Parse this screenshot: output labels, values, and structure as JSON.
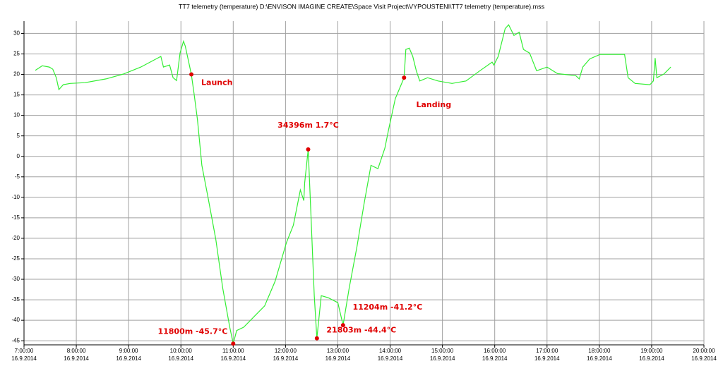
{
  "chart_data": {
    "type": "line",
    "title": "TT7 telemetry (temperature)    D:\\ENVISON IMAGINE CREATE\\Space Visit Project\\VYPOUSTENI\\TT7 telemetry (temperature).mss",
    "color": "#33ee33",
    "grid": true,
    "x": [
      "2014-09-16T07:13",
      "2014-09-16T07:21",
      "2014-09-16T07:29",
      "2014-09-16T07:33",
      "2014-09-16T07:37",
      "2014-09-16T07:40",
      "2014-09-16T07:45",
      "2014-09-16T07:53",
      "2014-09-16T08:10",
      "2014-09-16T08:34",
      "2014-09-16T08:54",
      "2014-09-16T09:14",
      "2014-09-16T09:37",
      "2014-09-16T09:40",
      "2014-09-16T09:47",
      "2014-09-16T09:51",
      "2014-09-16T09:55",
      "2014-09-16T09:59",
      "2014-09-16T10:03",
      "2014-09-16T10:05",
      "2014-09-16T10:09",
      "2014-09-16T10:12",
      "2014-09-16T10:15",
      "2014-09-16T10:19",
      "2014-09-16T10:24",
      "2014-09-16T10:31",
      "2014-09-16T10:40",
      "2014-09-16T10:48",
      "2014-09-16T10:56",
      "2014-09-16T11:00",
      "2014-09-16T11:04",
      "2014-09-16T11:12",
      "2014-09-16T11:24",
      "2014-09-16T11:36",
      "2014-09-16T11:48",
      "2014-09-16T12:01",
      "2014-09-16T12:09",
      "2014-09-16T12:17",
      "2014-09-16T12:21",
      "2014-09-16T12:22",
      "2014-09-16T12:26",
      "2014-09-16T12:29",
      "2014-09-16T12:33",
      "2014-09-16T12:36",
      "2014-09-16T12:41",
      "2014-09-16T12:49",
      "2014-09-16T13:00",
      "2014-09-16T13:06",
      "2014-09-16T13:13",
      "2014-09-16T13:22",
      "2014-09-16T13:30",
      "2014-09-16T13:38",
      "2014-09-16T13:46",
      "2014-09-16T13:54",
      "2014-09-16T13:58",
      "2014-09-16T14:06",
      "2014-09-16T14:16",
      "2014-09-16T14:18",
      "2014-09-16T14:22",
      "2014-09-16T14:26",
      "2014-09-16T14:30",
      "2014-09-16T14:34",
      "2014-09-16T14:43",
      "2014-09-16T14:55",
      "2014-09-16T15:11",
      "2014-09-16T15:27",
      "2014-09-16T15:43",
      "2014-09-16T15:57",
      "2014-09-16T15:59",
      "2014-09-16T16:04",
      "2014-09-16T16:12",
      "2014-09-16T16:16",
      "2014-09-16T16:22",
      "2014-09-16T16:28",
      "2014-09-16T16:33",
      "2014-09-16T16:40",
      "2014-09-16T16:48",
      "2014-09-16T17:00",
      "2014-09-16T17:12",
      "2014-09-16T17:33",
      "2014-09-16T17:37",
      "2014-09-16T17:41",
      "2014-09-16T17:49",
      "2014-09-16T18:01",
      "2014-09-16T18:29",
      "2014-09-16T18:33",
      "2014-09-16T18:41",
      "2014-09-16T18:58",
      "2014-09-16T19:02",
      "2014-09-16T19:04",
      "2014-09-16T19:06",
      "2014-09-16T19:14",
      "2014-09-16T19:22"
    ],
    "values": [
      21.0,
      22.1,
      21.8,
      21.3,
      19.2,
      16.3,
      17.5,
      17.8,
      18.0,
      18.9,
      20.1,
      21.8,
      24.4,
      21.8,
      22.3,
      19.2,
      18.5,
      25.2,
      28.1,
      26.9,
      23.0,
      20.0,
      15.4,
      8.9,
      -2.2,
      -9.9,
      -20.2,
      -32.2,
      -41.7,
      -45.7,
      -42.5,
      -41.7,
      -39.1,
      -36.5,
      -30.5,
      -21.1,
      -16.8,
      -8.2,
      -10.8,
      -6.5,
      1.7,
      -13.4,
      -34,
      -44.4,
      -34,
      -34.5,
      -35.7,
      -41.2,
      -32.2,
      -22,
      -11.7,
      -2.2,
      -3.0,
      2.0,
      6.3,
      14.1,
      19.2,
      26.1,
      26.4,
      24.4,
      20.9,
      18.4,
      19.2,
      18.4,
      17.8,
      18.4,
      20.9,
      23.0,
      22.3,
      24.4,
      31.2,
      32.1,
      29.5,
      30.3,
      26.1,
      25.2,
      20.9,
      21.8,
      20.2,
      19.7,
      18.9,
      21.8,
      23.8,
      24.9,
      24.9,
      19.2,
      17.8,
      17.5,
      18.4,
      24.0,
      19.2,
      20.1,
      21.8
    ],
    "xlim": [
      "2014-09-16T07:00",
      "2014-09-16T20:00"
    ],
    "xticks": [
      {
        "value": "2014-09-16T07:00",
        "label": [
          "7:00:00",
          "16.9.2014"
        ]
      },
      {
        "value": "2014-09-16T08:00",
        "label": [
          "8:00:00",
          "16.9.2014"
        ]
      },
      {
        "value": "2014-09-16T09:00",
        "label": [
          "9:00:00",
          "16.9.2014"
        ]
      },
      {
        "value": "2014-09-16T10:00",
        "label": [
          "10:00:00",
          "16.9.2014"
        ]
      },
      {
        "value": "2014-09-16T11:00",
        "label": [
          "11:00:00",
          "16.9.2014"
        ]
      },
      {
        "value": "2014-09-16T12:00",
        "label": [
          "12:00:00",
          "16.9.2014"
        ]
      },
      {
        "value": "2014-09-16T13:00",
        "label": [
          "13:00:00",
          "16.9.2014"
        ]
      },
      {
        "value": "2014-09-16T14:00",
        "label": [
          "14:00:00",
          "16.9.2014"
        ]
      },
      {
        "value": "2014-09-16T15:00",
        "label": [
          "15:00:00",
          "16.9.2014"
        ]
      },
      {
        "value": "2014-09-16T16:00",
        "label": [
          "16:00:00",
          "16.9.2014"
        ]
      },
      {
        "value": "2014-09-16T17:00",
        "label": [
          "17:00:00",
          "16.9.2014"
        ]
      },
      {
        "value": "2014-09-16T18:00",
        "label": [
          "18:00:00",
          "16.9.2014"
        ]
      },
      {
        "value": "2014-09-16T19:00",
        "label": [
          "19:00:00",
          "16.9.2014"
        ]
      },
      {
        "value": "2014-09-16T20:00",
        "label": [
          "20:00:00",
          "16.9.2014"
        ]
      }
    ],
    "ylim": [
      -46,
      33
    ],
    "yticks": [
      30,
      25,
      20,
      15,
      10,
      5,
      0,
      -5,
      -10,
      -15,
      -20,
      -25,
      -30,
      -35,
      -40,
      -45
    ],
    "annotations": [
      {
        "x": "2014-09-16T10:12",
        "y": 20.0,
        "text": "Launch"
      },
      {
        "x": "2014-09-16T11:00",
        "y": -45.7,
        "text": "11800m -45.7°C"
      },
      {
        "x": "2014-09-16T12:26",
        "y": 1.7,
        "text": "34396m 1.7°C"
      },
      {
        "x": "2014-09-16T12:36",
        "y": -44.4,
        "text": "21803m -44.4°C"
      },
      {
        "x": "2014-09-16T13:06",
        "y": -41.2,
        "text": "11204m -41.2°C"
      },
      {
        "x": "2014-09-16T14:16",
        "y": 19.2,
        "text": "Landing"
      }
    ]
  }
}
